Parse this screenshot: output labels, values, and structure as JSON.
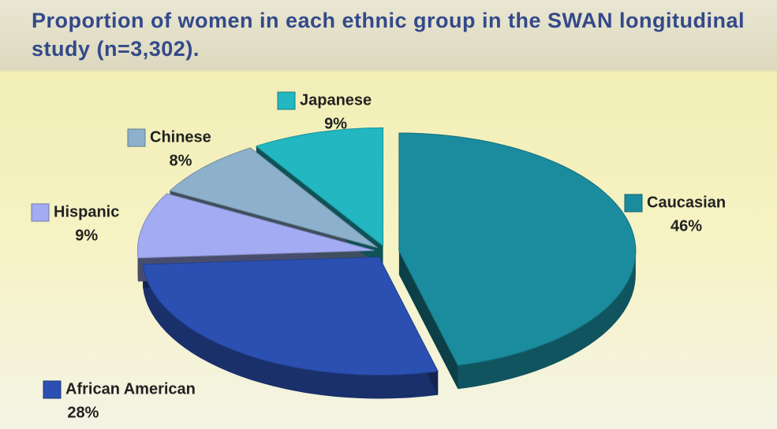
{
  "chart_data": {
    "type": "pie",
    "title": "Proportion of women in each ethnic group in the SWAN longitudinal study (n=3,302).",
    "categories": [
      "Caucasian",
      "African American",
      "Hispanic",
      "Chinese",
      "Japanese"
    ],
    "values": [
      46,
      28,
      9,
      8,
      9
    ],
    "value_labels": [
      "46%",
      "28%",
      "9%",
      "8%",
      "9%"
    ],
    "colors": [
      "#1b8c9e",
      "#2b50b2",
      "#a3abf2",
      "#8db0cc",
      "#22b7c1"
    ]
  }
}
